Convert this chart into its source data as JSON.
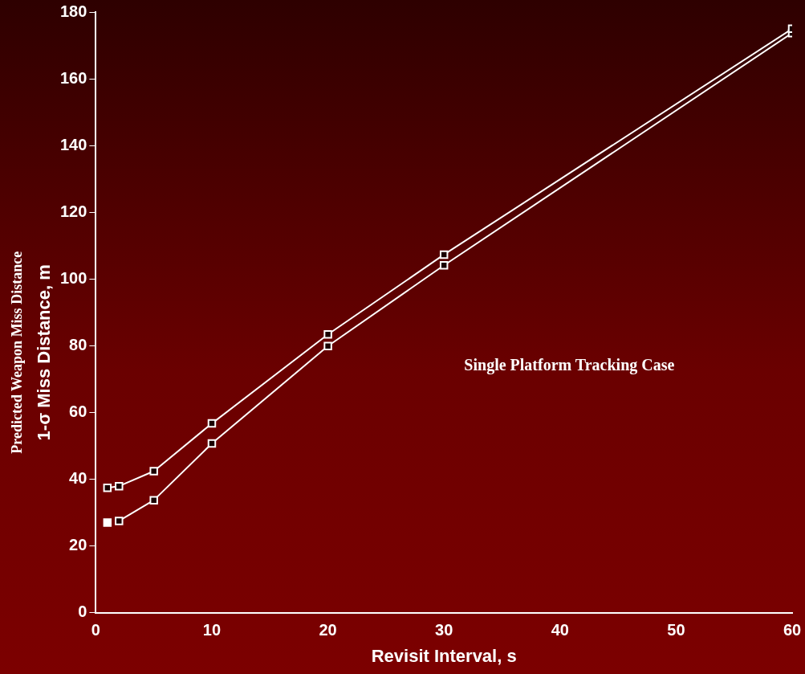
{
  "chart_data": {
    "type": "line",
    "xlabel": "Revisit Interval, s",
    "ylabel": "Predicted Weapon Miss Distance\n1-σ Miss Distance, m",
    "annotations": [
      "Single Platform Tracking Case"
    ],
    "xlim": [
      0,
      60
    ],
    "xticks": [
      0,
      10,
      20,
      30,
      40,
      50,
      60
    ],
    "ylim": [
      0,
      180
    ],
    "yticks": [
      0,
      20,
      40,
      60,
      80,
      100,
      120,
      140,
      160,
      180
    ],
    "grid": false,
    "legend": false,
    "marker": "square",
    "line_style": "solid",
    "series": [
      {
        "color": "#ffffff",
        "x": [
          1,
          2,
          5,
          10,
          20,
          30,
          60
        ],
        "values": [
          37.4,
          37.9,
          42.4,
          56.7,
          83.4,
          107.3,
          175
        ]
      },
      {
        "color": "#ffffff",
        "x": [
          2,
          5,
          10,
          20,
          30,
          60
        ],
        "values": [
          27.5,
          33.7,
          50.7,
          79.9,
          104.1,
          173.7
        ]
      },
      {
        "type": "scatter",
        "color": "#ffffff",
        "x": [
          1
        ],
        "values": [
          27
        ]
      }
    ]
  }
}
